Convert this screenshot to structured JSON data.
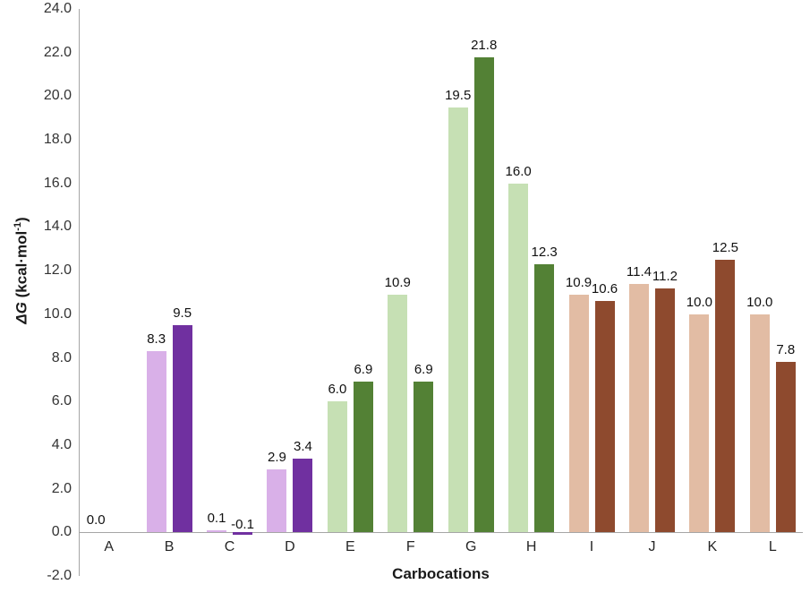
{
  "chart_data": {
    "type": "bar",
    "title": "",
    "xlabel": "Carbocations",
    "ylabel": "ΔG (kcal·mol⁻¹)",
    "y_title_parts": {
      "italic": "ΔG",
      "rest": " (kcal·mol",
      "sup": "-1",
      "close": ")"
    },
    "ylim": [
      -2.0,
      24.0
    ],
    "yticks": [
      "24.0",
      "22.0",
      "20.0",
      "18.0",
      "16.0",
      "14.0",
      "12.0",
      "10.0",
      "8.0",
      "6.0",
      "4.0",
      "2.0",
      "0.0",
      "-2.0"
    ],
    "categories": [
      "A",
      "B",
      "C",
      "D",
      "E",
      "F",
      "G",
      "H",
      "I",
      "J",
      "K",
      "L"
    ],
    "series": [
      {
        "name": "light",
        "values": [
          0.0,
          8.3,
          0.1,
          2.9,
          6.0,
          10.9,
          19.5,
          16.0,
          10.9,
          11.4,
          10.0,
          10.0
        ],
        "colors": [
          "#d9b0e8",
          "#d9b0e8",
          "#d9b0e8",
          "#d9b0e8",
          "#c6e0b4",
          "#c6e0b4",
          "#c6e0b4",
          "#c6e0b4",
          "#e2bca4",
          "#e2bca4",
          "#e2bca4",
          "#e2bca4"
        ]
      },
      {
        "name": "dark",
        "values": [
          null,
          9.5,
          -0.1,
          3.4,
          6.9,
          6.9,
          21.8,
          12.3,
          10.6,
          11.2,
          12.5,
          7.8
        ],
        "colors": [
          "#7030a0",
          "#7030a0",
          "#7030a0",
          "#7030a0",
          "#538135",
          "#538135",
          "#538135",
          "#538135",
          "#8e4a2e",
          "#8e4a2e",
          "#8e4a2e",
          "#8e4a2e"
        ]
      }
    ],
    "axis_color": "#a6a6a6",
    "grid": false,
    "legend": null
  }
}
